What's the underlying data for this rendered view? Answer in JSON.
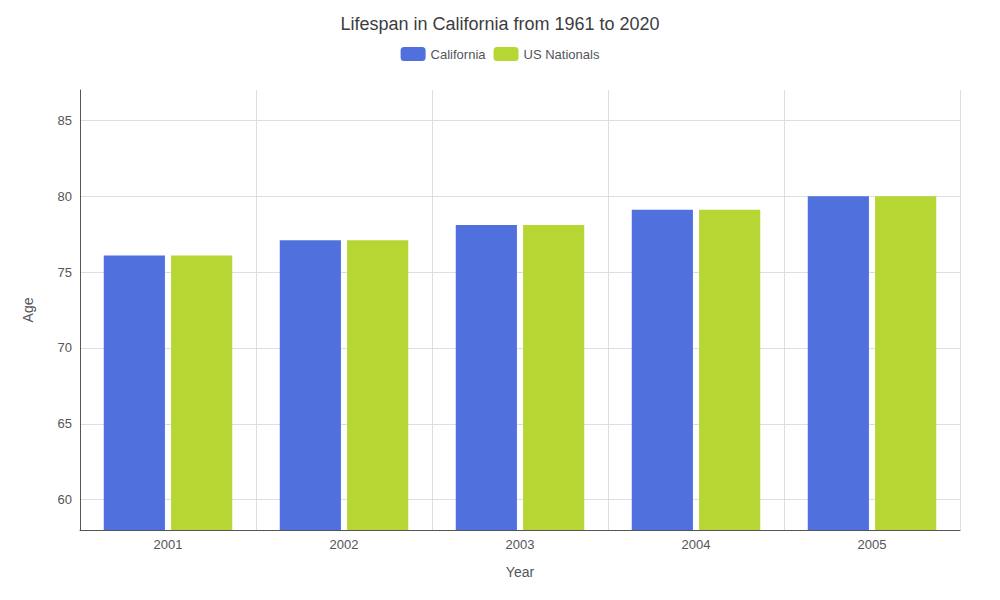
{
  "chart_data": {
    "type": "bar",
    "title": "Lifespan in California from 1961 to 2020",
    "xlabel": "Year",
    "ylabel": "Age",
    "categories": [
      "2001",
      "2002",
      "2003",
      "2004",
      "2005"
    ],
    "series": [
      {
        "name": "California",
        "values": [
          76.1,
          77.1,
          78.1,
          79.1,
          80.0
        ]
      },
      {
        "name": "US Nationals",
        "values": [
          76.1,
          77.1,
          78.1,
          79.1,
          80.0
        ]
      }
    ],
    "ylim": [
      58,
      87
    ],
    "yticks": [
      60,
      65,
      70,
      75,
      80,
      85
    ],
    "grid": true,
    "legend": "top"
  }
}
